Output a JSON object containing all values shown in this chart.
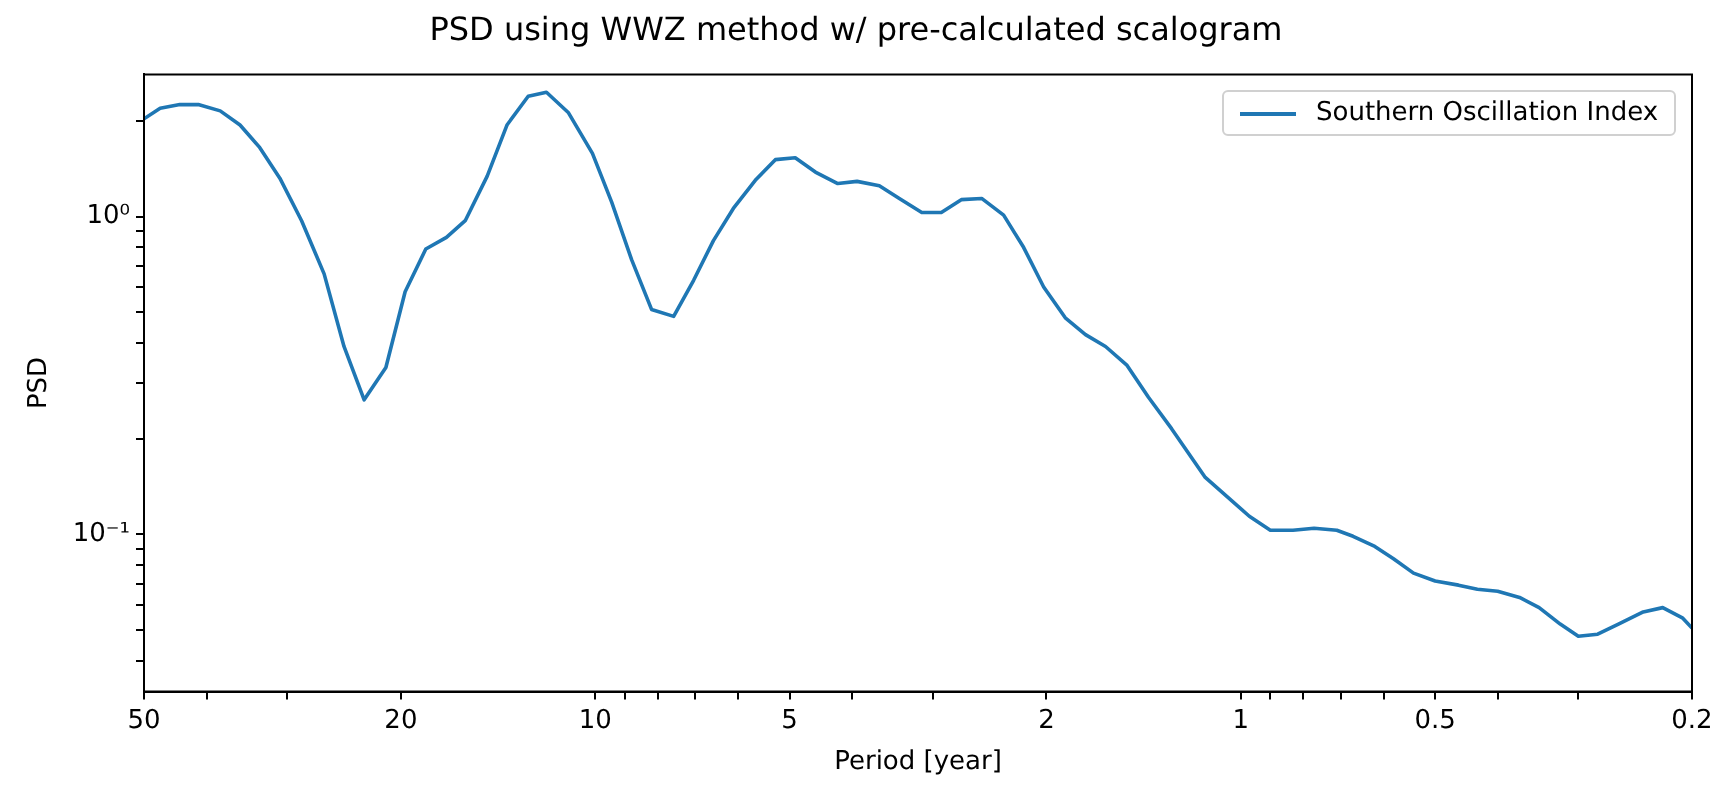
{
  "chart_data": {
    "type": "line",
    "title": "PSD using WWZ method w/ pre-calculated scalogram",
    "xlabel": "Period [year]",
    "ylabel": "PSD",
    "log": "xy",
    "legend": "top right",
    "x": [
      50,
      47.2,
      44.0,
      41.2,
      38.1,
      35.5,
      33.1,
      30.8,
      28.5,
      26.3,
      24.5,
      22.8,
      21.1,
      19.7,
      18.3,
      17.0,
      15.9,
      14.7,
      13.7,
      12.7,
      11.9,
      11.0,
      10.1,
      9.43,
      8.78,
      8.18,
      7.56,
      7.04,
      6.56,
      6.11,
      5.65,
      5.26,
      4.9,
      4.56,
      4.21,
      3.93,
      3.63,
      3.38,
      3.12,
      2.91,
      2.71,
      2.52,
      2.33,
      2.17,
      2.02,
      1.87,
      1.74,
      1.62,
      1.5,
      1.39,
      1.28,
      1.135,
      0.97,
      0.9,
      0.83,
      0.77,
      0.71,
      0.67,
      0.62,
      0.58,
      0.54,
      0.5,
      0.46,
      0.43,
      0.4,
      0.37,
      0.345,
      0.32,
      0.3,
      0.28,
      0.26,
      0.238,
      0.222,
      0.207,
      0.2
    ],
    "series": [
      {
        "name": "Southern Oscillation Index",
        "color": "#1f77b4",
        "values": [
          2.03,
          2.19,
          2.25,
          2.25,
          2.15,
          1.94,
          1.65,
          1.32,
          0.97,
          0.66,
          0.39,
          0.265,
          0.335,
          0.58,
          0.79,
          0.86,
          0.97,
          1.34,
          1.94,
          2.39,
          2.46,
          2.12,
          1.58,
          1.11,
          0.73,
          0.51,
          0.485,
          0.63,
          0.84,
          1.06,
          1.3,
          1.51,
          1.53,
          1.38,
          1.27,
          1.29,
          1.25,
          1.14,
          1.03,
          1.03,
          1.13,
          1.14,
          1.01,
          0.8,
          0.6,
          0.48,
          0.425,
          0.39,
          0.34,
          0.27,
          0.215,
          0.151,
          0.114,
          0.103,
          0.103,
          0.1045,
          0.103,
          0.0986,
          0.0916,
          0.0838,
          0.0755,
          0.0713,
          0.0692,
          0.0672,
          0.0662,
          0.0633,
          0.0588,
          0.0522,
          0.0478,
          0.0485,
          0.0522,
          0.057,
          0.0588,
          0.0546,
          0.0507
        ]
      }
    ],
    "xlim": [
      50,
      0.2
    ],
    "xticks": [
      50,
      {
        "value": 40,
        "label": null
      },
      {
        "value": 30,
        "label": null
      },
      20,
      10,
      {
        "value": 9,
        "label": null
      },
      {
        "value": 8,
        "label": null
      },
      {
        "value": 7,
        "label": null
      },
      {
        "value": 6,
        "label": null
      },
      5,
      {
        "value": 4,
        "label": null
      },
      {
        "value": 3,
        "label": null
      },
      2,
      1,
      {
        "value": 0.9,
        "label": null
      },
      {
        "value": 0.8,
        "label": null
      },
      {
        "value": 0.7,
        "label": null
      },
      {
        "value": 0.6,
        "label": null
      },
      0.5,
      {
        "value": 0.4,
        "label": null
      },
      {
        "value": 0.3,
        "label": null
      },
      0.2
    ],
    "ylim": [
      0.032,
      2.8
    ],
    "yticks": [
      {
        "value": 0.04,
        "label": null
      },
      {
        "value": 0.05,
        "label": null
      },
      {
        "value": 0.06,
        "label": null
      },
      {
        "value": 0.07,
        "label": null
      },
      {
        "value": 0.08,
        "label": null
      },
      {
        "value": 0.09,
        "label": null
      },
      {
        "value": 0.1,
        "label": "10⁻¹"
      },
      {
        "value": 0.2,
        "label": null
      },
      {
        "value": 0.3,
        "label": null
      },
      {
        "value": 0.4,
        "label": null
      },
      {
        "value": 0.5,
        "label": null
      },
      {
        "value": 0.6,
        "label": null
      },
      {
        "value": 0.7,
        "label": null
      },
      {
        "value": 0.8,
        "label": null
      },
      {
        "value": 0.9,
        "label": null
      },
      {
        "value": 1,
        "label": "10⁰"
      },
      {
        "value": 2,
        "label": null
      }
    ]
  }
}
